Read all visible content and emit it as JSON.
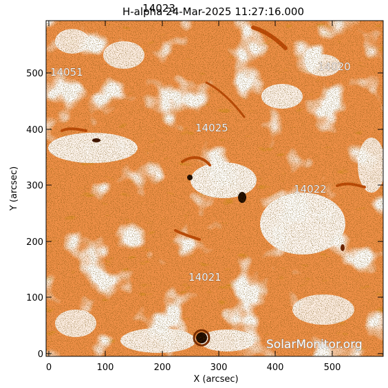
{
  "image": {
    "title": "H-alpha 24-Mar-2025 11:27:16.000",
    "overlap_label": "14023",
    "xlabel": "X (arcsec)",
    "ylabel": "Y (arcsec)",
    "x_ticks": [
      "0",
      "100",
      "200",
      "300",
      "400",
      "500"
    ],
    "y_ticks": [
      "0",
      "100",
      "200",
      "300",
      "400",
      "500"
    ],
    "x_range": [
      -5,
      590
    ],
    "y_range": [
      -5,
      595
    ],
    "watermark": "SolarMonitor.org",
    "colors": {
      "background": "#ffffff",
      "chromosphere_base": "#f09048",
      "chromosphere_bright": "#ffffff",
      "fibril_dark": "#c04a08",
      "sunspot_core": "#1a0800",
      "speckle": "#2a1200"
    }
  },
  "regions": [
    {
      "id": "14051",
      "label": "14051"
    },
    {
      "id": "14020",
      "label": "14020"
    },
    {
      "id": "14025",
      "label": "14025"
    },
    {
      "id": "14022",
      "label": "14022"
    },
    {
      "id": "14021",
      "label": "14021"
    }
  ]
}
